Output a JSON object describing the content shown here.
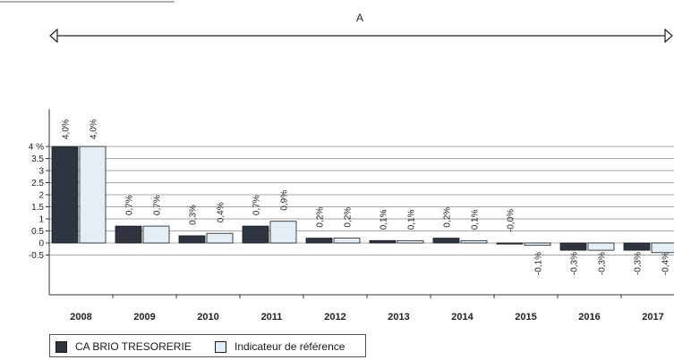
{
  "period_marker": "A",
  "chart_data": {
    "type": "bar",
    "categories": [
      "2008",
      "2009",
      "2010",
      "2011",
      "2012",
      "2013",
      "2014",
      "2015",
      "2016",
      "2017"
    ],
    "series": [
      {
        "name": "CA BRIO TRESORERIE",
        "values": [
          4.0,
          0.7,
          0.3,
          0.7,
          0.2,
          0.1,
          0.2,
          -0.0,
          -0.3,
          -0.3
        ],
        "labels": [
          "4,0%",
          "0,7%",
          "0,3%",
          "0,7%",
          "0,2%",
          "0,1%",
          "0,2%",
          "-0,0%",
          "-0,3%",
          "-0,3%"
        ],
        "color": "#2e3540"
      },
      {
        "name": "Indicateur de référence",
        "values": [
          4.0,
          0.7,
          0.4,
          0.9,
          0.2,
          0.1,
          0.1,
          -0.1,
          -0.3,
          -0.4
        ],
        "labels": [
          "4,0%",
          "0,7%",
          "0,4%",
          "0,9%",
          "0,2%",
          "0,1%",
          "0,1%",
          "-0,1%",
          "-0,3%",
          "-0,4%"
        ],
        "color": "#e3eef7"
      }
    ],
    "y_ticks": [
      "4 %",
      "3.5",
      "3",
      "2.5",
      "2",
      "1.5",
      "1",
      "0.5",
      "0",
      "-0.5"
    ],
    "y_tick_values": [
      4,
      3.5,
      3,
      2.5,
      2,
      1.5,
      1,
      0.5,
      0,
      -0.5
    ],
    "ylim": [
      -0.5,
      4
    ],
    "grid": true,
    "legend_position": "bottom-left"
  }
}
